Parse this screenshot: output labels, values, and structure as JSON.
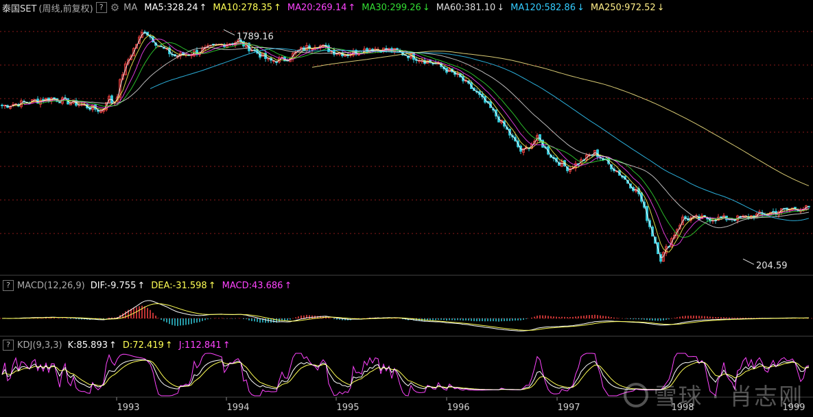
{
  "header": {
    "instrument": "泰国SET",
    "period_label": "(周线,前复权)",
    "help_icon_label": "?",
    "ma_label": "MA",
    "ma_items": [
      {
        "label": "MA5:328.24",
        "arrow": "↑",
        "color": "#ffffff"
      },
      {
        "label": "MA10:278.35",
        "arrow": "↑",
        "color": "#ffff55"
      },
      {
        "label": "MA20:269.14",
        "arrow": "↑",
        "color": "#ff44ff"
      },
      {
        "label": "MA30:299.26",
        "arrow": "↓",
        "color": "#33dd33"
      },
      {
        "label": "MA60:381.10",
        "arrow": "↓",
        "color": "#dddddd"
      },
      {
        "label": "MA120:582.86",
        "arrow": "↓",
        "color": "#33ccff"
      },
      {
        "label": "MA250:972.52",
        "arrow": "↓",
        "color": "#ffee88"
      }
    ]
  },
  "macd_legend": {
    "box_label": "?",
    "title": "MACD(12,26,9)",
    "items": [
      {
        "label": "DIF:-9.755",
        "arrow": "↑",
        "color": "#ffffff"
      },
      {
        "label": "DEA:-31.598",
        "arrow": "↑",
        "color": "#ffff55"
      },
      {
        "label": "MACD:43.686",
        "arrow": "↑",
        "color": "#ff44ff"
      }
    ]
  },
  "kdj_legend": {
    "box_label": "?",
    "title": "KDJ(9,3,3)",
    "items": [
      {
        "label": "K:85.893",
        "arrow": "↑",
        "color": "#ffffff"
      },
      {
        "label": "D:72.419",
        "arrow": "↑",
        "color": "#ffff55"
      },
      {
        "label": "J:112.841",
        "arrow": "↑",
        "color": "#ff44ff"
      }
    ]
  },
  "watermark": "雪球 · 肖志刚",
  "colors": {
    "up": "#ff4444",
    "down": "#33ccdd",
    "background": "#000000",
    "grid": "#8b1a1a"
  },
  "chart_data": {
    "type": "line",
    "title": "泰国SET (周线,前复权)",
    "x_tick_labels": [
      "1993",
      "1994",
      "1995",
      "1996",
      "1997",
      "1998",
      "1999"
    ],
    "annotations": [
      {
        "label": "1789.16",
        "x": "1994",
        "y": 1789.16
      },
      {
        "label": "204.59",
        "x": "1998",
        "y": 204.59
      }
    ],
    "price_points": [
      [
        "1992",
        870
      ],
      [
        "1992",
        900
      ],
      [
        "1992",
        935
      ],
      [
        "1992",
        890
      ],
      [
        "1992",
        830
      ],
      [
        "1993",
        860
      ],
      [
        "1993",
        950
      ],
      [
        "1993",
        930
      ],
      [
        "1993",
        890
      ],
      [
        "1993",
        920
      ],
      [
        "1993",
        1000
      ],
      [
        "1993",
        1140
      ],
      [
        "1993",
        1350
      ],
      [
        "1994",
        1789.16
      ],
      [
        "1994",
        1520
      ],
      [
        "1994",
        1390
      ],
      [
        "1994",
        1430
      ],
      [
        "1994",
        1490
      ],
      [
        "1994",
        1560
      ],
      [
        "1994",
        1600
      ],
      [
        "1995",
        1470
      ],
      [
        "1995",
        1330
      ],
      [
        "1995",
        1350
      ],
      [
        "1995",
        1480
      ],
      [
        "1995",
        1560
      ],
      [
        "1995",
        1460
      ],
      [
        "1995",
        1420
      ],
      [
        "1996",
        1500
      ],
      [
        "1996",
        1470
      ],
      [
        "1996",
        1380
      ],
      [
        "1996",
        1290
      ],
      [
        "1996",
        1150
      ],
      [
        "1997",
        1000
      ],
      [
        "1997",
        850
      ],
      [
        "1997",
        700
      ],
      [
        "1997",
        560
      ],
      [
        "1997",
        640
      ],
      [
        "1997",
        530
      ],
      [
        "1997",
        480
      ],
      [
        "1998",
        560
      ],
      [
        "1998",
        470
      ],
      [
        "1998",
        380
      ],
      [
        "1998",
        204.59
      ],
      [
        "1998",
        300
      ],
      [
        "1999",
        300
      ],
      [
        "1999",
        330
      ]
    ]
  }
}
